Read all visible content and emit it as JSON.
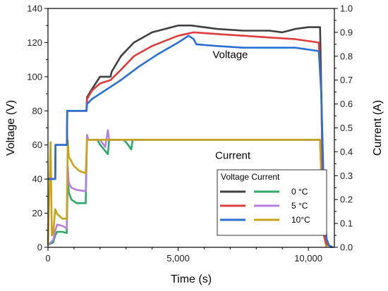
{
  "chart_data": {
    "type": "line",
    "xlabel": "Time (s)",
    "ylabel_left": "Voltage (V)",
    "ylabel_right": "Current (A)",
    "xlim": [
      0,
      11000
    ],
    "ylim_left": [
      0,
      140
    ],
    "ylim_right": [
      0,
      1.0
    ],
    "x_ticks": [
      0,
      5000,
      10000
    ],
    "x_tick_labels": [
      "0",
      "5,000",
      "10,000"
    ],
    "y_left_ticks": [
      0,
      20,
      40,
      60,
      80,
      100,
      120,
      140
    ],
    "y_left_tick_labels": [
      "0",
      "20",
      "40",
      "60",
      "80",
      "100",
      "120",
      "140"
    ],
    "y_right_ticks": [
      0,
      0.1,
      0.2,
      0.3,
      0.4,
      0.5,
      0.6,
      0.7,
      0.8,
      0.9,
      1.0
    ],
    "y_right_tick_labels": [
      "0.0",
      "0.1",
      "0.2",
      "0.3",
      "0.4",
      "0.5",
      "0.6",
      "0.7",
      "0.8",
      "0.9",
      "1.0"
    ],
    "annotations": [
      {
        "text": "Voltage",
        "x": 7000,
        "y": 113,
        "axis": "left"
      },
      {
        "text": "Current",
        "x": 7100,
        "y": 0.385,
        "axis": "right"
      }
    ],
    "legend": {
      "title": "Voltage Current",
      "labels": [
        "0  °C",
        "5  °C",
        "10°C"
      ],
      "placement": "bottom-right"
    },
    "series": [
      {
        "label": "0  °C",
        "kind": "voltage",
        "axis": "left",
        "color": "#404040",
        "points": [
          [
            0,
            40
          ],
          [
            280,
            40
          ],
          [
            290,
            60
          ],
          [
            730,
            60
          ],
          [
            740,
            80
          ],
          [
            1480,
            80
          ],
          [
            1500,
            88
          ],
          [
            1700,
            93
          ],
          [
            2000,
            100
          ],
          [
            2400,
            100
          ],
          [
            2450,
            103
          ],
          [
            2800,
            112
          ],
          [
            3300,
            120
          ],
          [
            4000,
            126
          ],
          [
            5000,
            130
          ],
          [
            5500,
            130
          ],
          [
            6500,
            128
          ],
          [
            7500,
            127
          ],
          [
            8500,
            127
          ],
          [
            9000,
            126
          ],
          [
            9500,
            128
          ],
          [
            10000,
            129
          ],
          [
            10450,
            129
          ],
          [
            10500,
            90
          ],
          [
            10560,
            30
          ],
          [
            10620,
            6
          ],
          [
            10700,
            2
          ],
          [
            10900,
            0
          ]
        ]
      },
      {
        "label": "5  °C",
        "kind": "voltage",
        "axis": "left",
        "color": "#e03c3c",
        "points": [
          [
            0,
            40
          ],
          [
            280,
            40
          ],
          [
            290,
            60
          ],
          [
            730,
            60
          ],
          [
            740,
            80
          ],
          [
            1480,
            80
          ],
          [
            1500,
            87
          ],
          [
            1700,
            92
          ],
          [
            2000,
            96
          ],
          [
            2400,
            98
          ],
          [
            2800,
            104
          ],
          [
            3300,
            112
          ],
          [
            4000,
            118
          ],
          [
            5000,
            124
          ],
          [
            5600,
            126
          ],
          [
            6500,
            125
          ],
          [
            7500,
            124
          ],
          [
            8500,
            123
          ],
          [
            9500,
            122
          ],
          [
            10400,
            120
          ],
          [
            10500,
            90
          ],
          [
            10560,
            30
          ],
          [
            10620,
            6
          ],
          [
            10700,
            2
          ],
          [
            10900,
            0
          ]
        ]
      },
      {
        "label": "10°C",
        "kind": "voltage",
        "axis": "left",
        "color": "#2a6fd6",
        "points": [
          [
            0,
            40
          ],
          [
            280,
            40
          ],
          [
            290,
            60
          ],
          [
            730,
            60
          ],
          [
            740,
            80
          ],
          [
            1480,
            80
          ],
          [
            1500,
            84
          ],
          [
            1700,
            87
          ],
          [
            2200,
            92
          ],
          [
            2800,
            98
          ],
          [
            3500,
            106
          ],
          [
            4200,
            113
          ],
          [
            5000,
            120
          ],
          [
            5400,
            124
          ],
          [
            5600,
            122
          ],
          [
            5700,
            119
          ],
          [
            6500,
            118
          ],
          [
            7500,
            117
          ],
          [
            8500,
            117
          ],
          [
            9500,
            117
          ],
          [
            10400,
            115
          ],
          [
            10500,
            90
          ],
          [
            10600,
            30
          ],
          [
            10700,
            5
          ],
          [
            10800,
            1
          ],
          [
            10950,
            0
          ]
        ]
      },
      {
        "label": "0  °C",
        "kind": "current",
        "axis": "right",
        "color": "#2eaa67",
        "points": [
          [
            0,
            0.01
          ],
          [
            200,
            0.02
          ],
          [
            280,
            0.05
          ],
          [
            350,
            0.065
          ],
          [
            550,
            0.065
          ],
          [
            720,
            0.06
          ],
          [
            760,
            0.31
          ],
          [
            800,
            0.23
          ],
          [
            900,
            0.2
          ],
          [
            1100,
            0.185
          ],
          [
            1450,
            0.185
          ],
          [
            1500,
            0.47
          ],
          [
            1550,
            0.45
          ],
          [
            1900,
            0.45
          ],
          [
            2000,
            0.43
          ],
          [
            2300,
            0.39
          ],
          [
            2350,
            0.45
          ],
          [
            2900,
            0.45
          ],
          [
            3000,
            0.44
          ],
          [
            3200,
            0.41
          ],
          [
            3250,
            0.45
          ],
          [
            10450,
            0.45
          ],
          [
            10500,
            0.3
          ],
          [
            10600,
            0.05
          ],
          [
            10700,
            0.0
          ]
        ]
      },
      {
        "label": "5  °C",
        "kind": "current",
        "axis": "right",
        "color": "#b57fe0",
        "points": [
          [
            0,
            0.01
          ],
          [
            200,
            0.03
          ],
          [
            280,
            0.07
          ],
          [
            350,
            0.095
          ],
          [
            550,
            0.09
          ],
          [
            720,
            0.08
          ],
          [
            760,
            0.34
          ],
          [
            800,
            0.27
          ],
          [
            900,
            0.25
          ],
          [
            1100,
            0.24
          ],
          [
            1450,
            0.235
          ],
          [
            1500,
            0.47
          ],
          [
            1550,
            0.45
          ],
          [
            2000,
            0.45
          ],
          [
            2200,
            0.42
          ],
          [
            2300,
            0.49
          ],
          [
            2350,
            0.45
          ],
          [
            10450,
            0.45
          ],
          [
            10500,
            0.3
          ],
          [
            10600,
            0.05
          ],
          [
            10700,
            0.0
          ]
        ]
      },
      {
        "label": "10°C",
        "kind": "current",
        "axis": "right",
        "color": "#c9a318",
        "points": [
          [
            0,
            0.01
          ],
          [
            100,
            0.44
          ],
          [
            150,
            0.05
          ],
          [
            200,
            0.06
          ],
          [
            280,
            0.16
          ],
          [
            350,
            0.14
          ],
          [
            550,
            0.12
          ],
          [
            720,
            0.12
          ],
          [
            760,
            0.45
          ],
          [
            800,
            0.38
          ],
          [
            1000,
            0.34
          ],
          [
            1200,
            0.32
          ],
          [
            1450,
            0.31
          ],
          [
            1500,
            0.45
          ],
          [
            10450,
            0.45
          ],
          [
            10500,
            0.3
          ],
          [
            10600,
            0.05
          ],
          [
            10700,
            0.0
          ]
        ]
      }
    ]
  }
}
